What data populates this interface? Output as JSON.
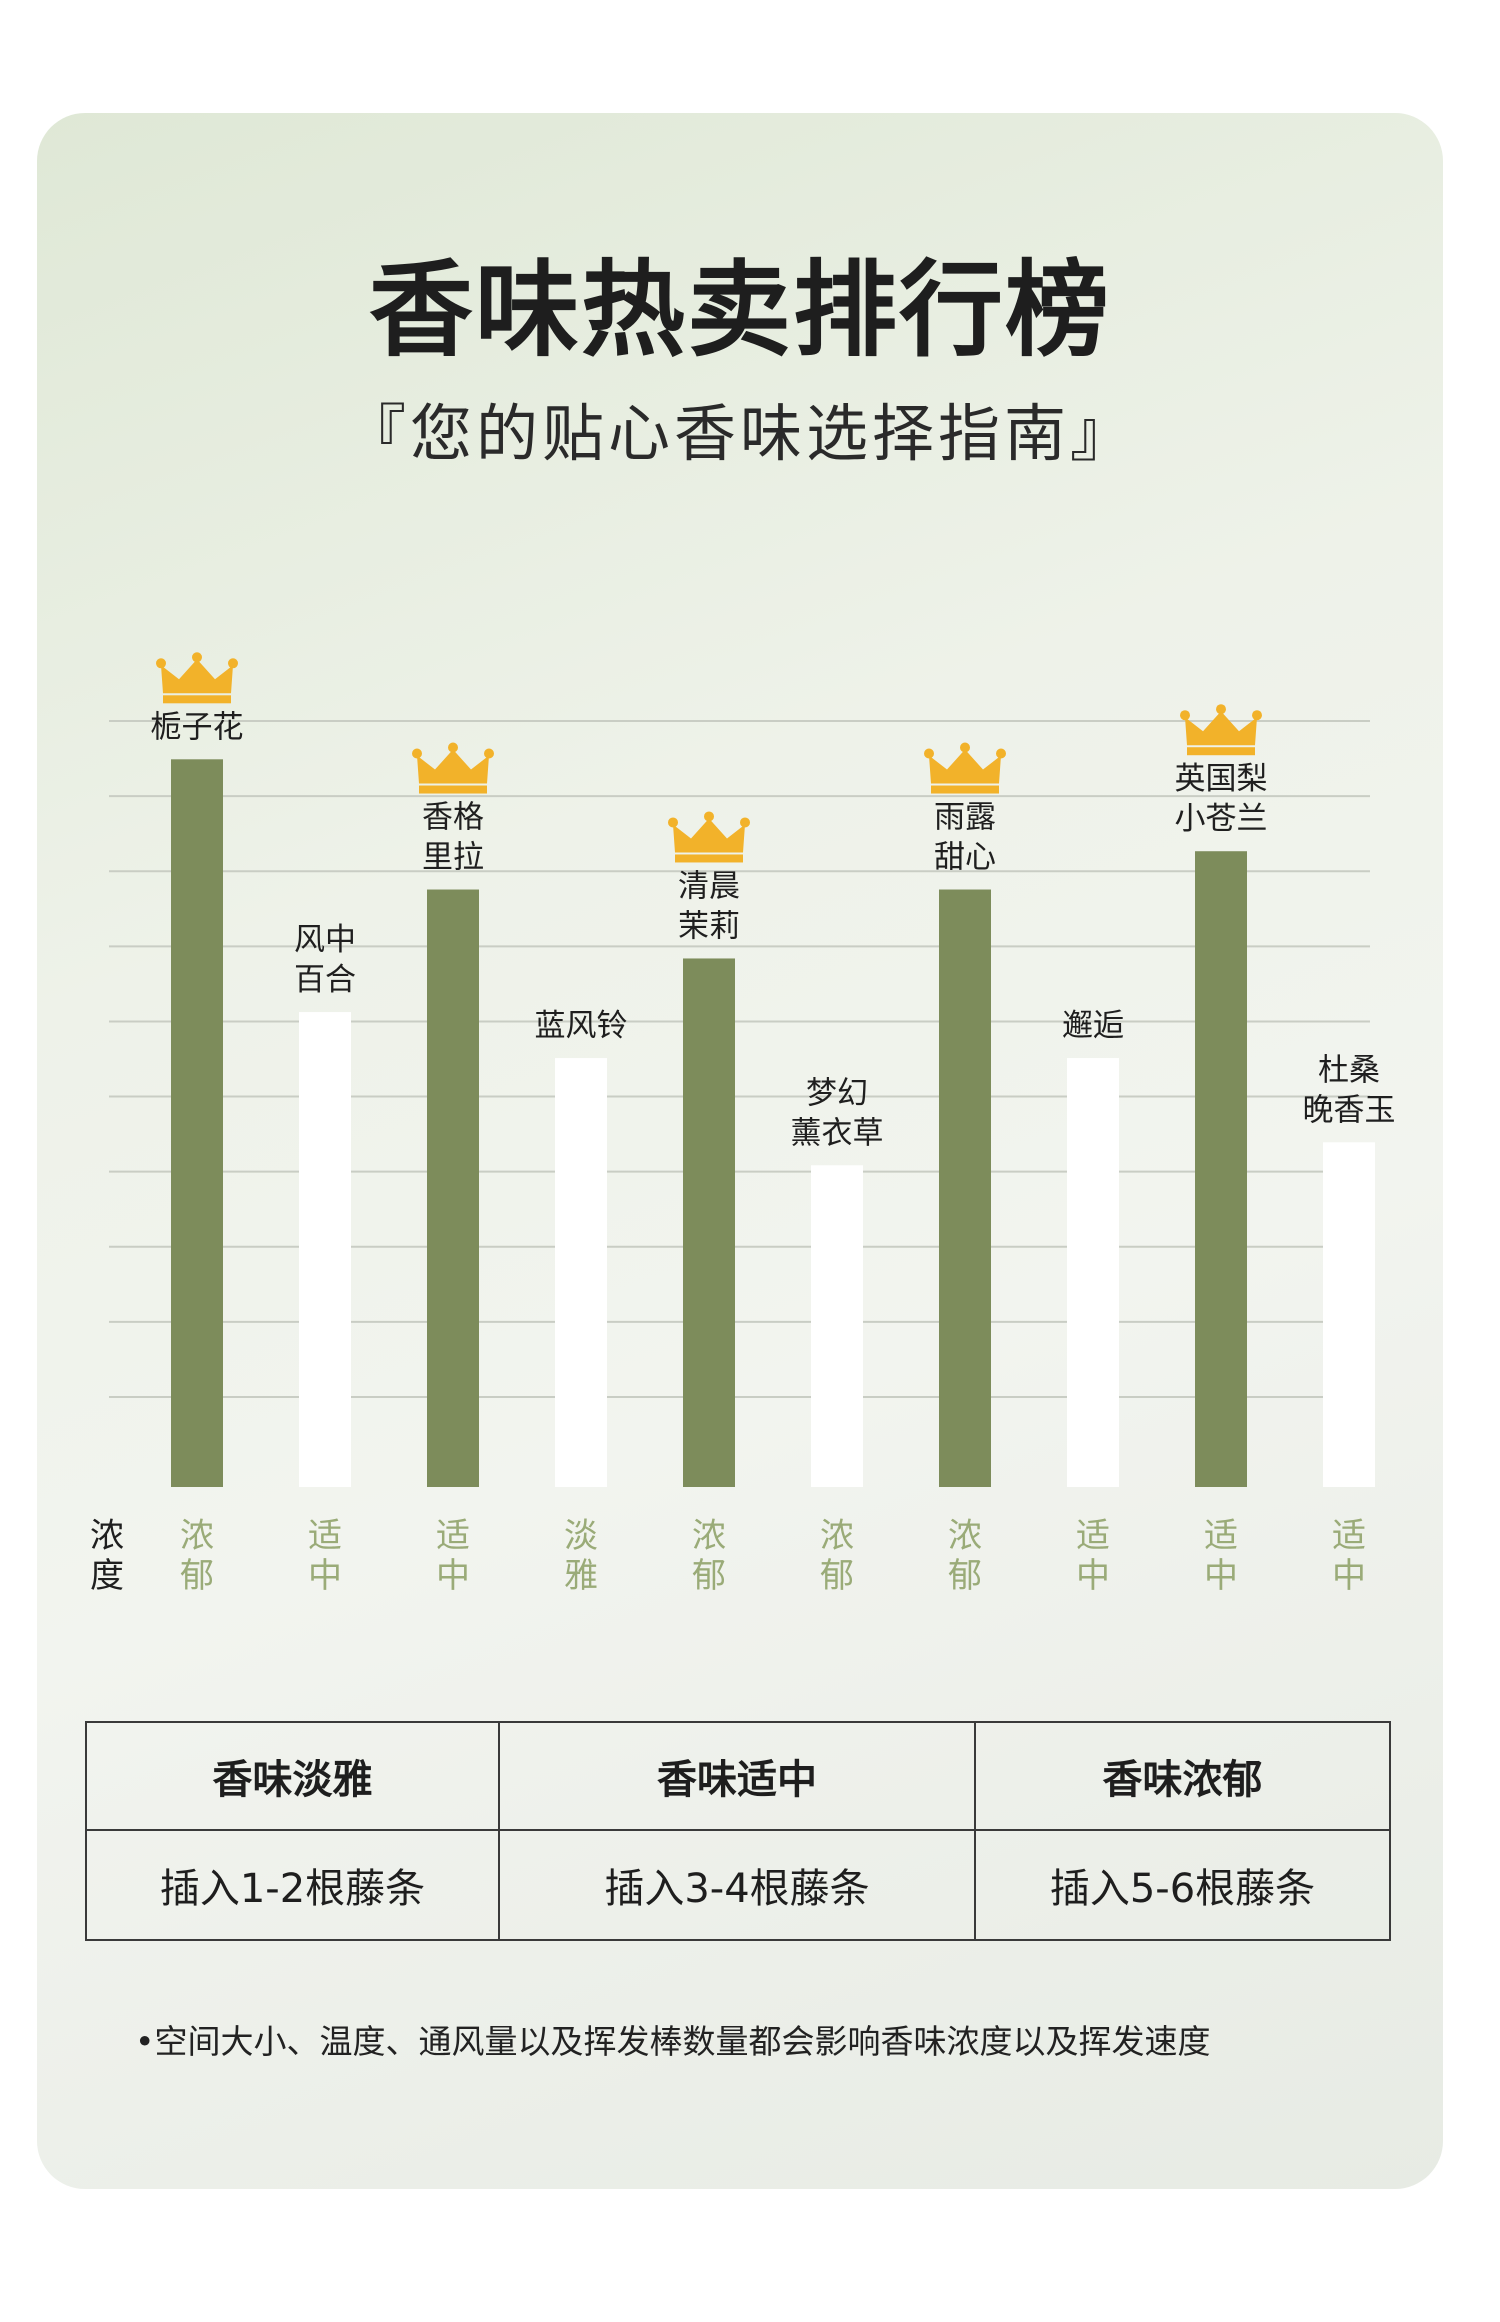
{
  "header": {
    "title": "香味热卖排行榜",
    "subtitle": "『您的贴心香味选择指南』"
  },
  "colors": {
    "bar_strong": "#7d8c5b",
    "bar_light": "#ffffff",
    "crown": "#f2b22a",
    "concentration_text": "#9aab78"
  },
  "chart_data": {
    "type": "bar",
    "title": "香味热卖排行榜",
    "ylabel": "",
    "xlabel": "浓度",
    "grid": true,
    "ylim": [
      0,
      100
    ],
    "categories": [
      "栀子花",
      "风中百合",
      "香格里拉",
      "蓝风铃",
      "清晨茉莉",
      "梦幻薰衣草",
      "雨露甜心",
      "邂逅",
      "英国梨小苍兰",
      "杜桑晚香玉"
    ],
    "bars": [
      {
        "label": [
          "栀子花"
        ],
        "value": 95,
        "crown": true,
        "style": "strong",
        "concentration": "浓郁"
      },
      {
        "label": [
          "风中",
          "百合"
        ],
        "value": 62,
        "crown": false,
        "style": "light",
        "concentration": "适中"
      },
      {
        "label": [
          "香格",
          "里拉"
        ],
        "value": 78,
        "crown": true,
        "style": "strong",
        "concentration": "适中"
      },
      {
        "label": [
          "蓝风铃"
        ],
        "value": 56,
        "crown": false,
        "style": "light",
        "concentration": "淡雅"
      },
      {
        "label": [
          "清晨",
          "茉莉"
        ],
        "value": 69,
        "crown": true,
        "style": "strong",
        "concentration": "浓郁"
      },
      {
        "label": [
          "梦幻",
          "薰衣草"
        ],
        "value": 42,
        "crown": false,
        "style": "light",
        "concentration": "浓郁"
      },
      {
        "label": [
          "雨露",
          "甜心"
        ],
        "value": 78,
        "crown": true,
        "style": "strong",
        "concentration": "浓郁"
      },
      {
        "label": [
          "邂逅"
        ],
        "value": 56,
        "crown": false,
        "style": "light",
        "concentration": "适中"
      },
      {
        "label": [
          "英国梨",
          "小苍兰"
        ],
        "value": 83,
        "crown": true,
        "style": "strong",
        "concentration": "适中"
      },
      {
        "label": [
          "杜桑",
          "晚香玉"
        ],
        "value": 45,
        "crown": false,
        "style": "light",
        "concentration": "适中"
      }
    ]
  },
  "table": {
    "headers": [
      "香味淡雅",
      "香味适中",
      "香味浓郁"
    ],
    "rows": [
      [
        "插入1-2根藤条",
        "插入3-4根藤条",
        "插入5-6根藤条"
      ]
    ]
  },
  "note": "•空间大小、温度、通风量以及挥发棒数量都会影响香味浓度以及挥发速度"
}
